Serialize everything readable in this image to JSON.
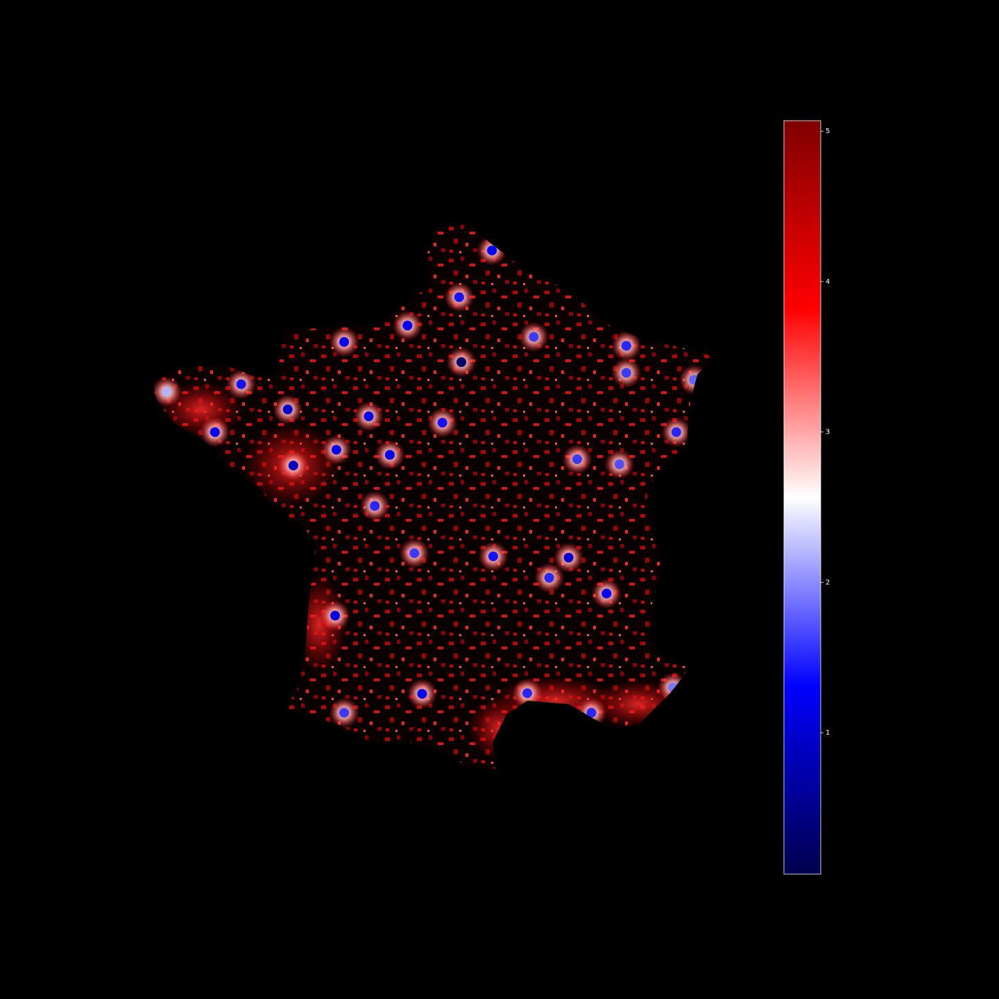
{
  "map": {
    "colormap": "seismic",
    "points": [
      {
        "lon": 2.35,
        "lat": 48.86,
        "value": 0.3
      },
      {
        "lon": 3.06,
        "lat": 50.63,
        "value": 1.3
      },
      {
        "lon": 4.84,
        "lat": 45.76,
        "value": 1.0
      },
      {
        "lon": 5.37,
        "lat": 43.3,
        "value": 1.5
      },
      {
        "lon": 1.44,
        "lat": 43.6,
        "value": 1.2
      },
      {
        "lon": -0.58,
        "lat": 44.84,
        "value": 1.1
      },
      {
        "lon": -1.55,
        "lat": 47.22,
        "value": 0.9
      },
      {
        "lon": -1.68,
        "lat": 48.11,
        "value": 1.0
      },
      {
        "lon": -4.49,
        "lat": 48.39,
        "value": 2.2
      },
      {
        "lon": 7.75,
        "lat": 48.58,
        "value": 1.8
      },
      {
        "lon": 7.26,
        "lat": 43.7,
        "value": 1.9
      },
      {
        "lon": 3.88,
        "lat": 43.61,
        "value": 1.5
      },
      {
        "lon": 5.72,
        "lat": 45.19,
        "value": 1.3
      },
      {
        "lon": 3.09,
        "lat": 45.78,
        "value": 1.4
      },
      {
        "lon": 1.26,
        "lat": 45.83,
        "value": 1.6
      },
      {
        "lon": 0.34,
        "lat": 46.58,
        "value": 1.5
      },
      {
        "lon": 0.69,
        "lat": 47.39,
        "value": 1.2
      },
      {
        "lon": -0.55,
        "lat": 47.47,
        "value": 1.3
      },
      {
        "lon": 0.2,
        "lat": 48.0,
        "value": 1.3
      },
      {
        "lon": 1.91,
        "lat": 47.9,
        "value": 1.4
      },
      {
        "lon": -0.37,
        "lat": 49.18,
        "value": 1.2
      },
      {
        "lon": 1.1,
        "lat": 49.44,
        "value": 1.3
      },
      {
        "lon": 2.3,
        "lat": 49.89,
        "value": 1.4
      },
      {
        "lon": 4.03,
        "lat": 49.26,
        "value": 1.6
      },
      {
        "lon": 6.18,
        "lat": 49.12,
        "value": 1.5
      },
      {
        "lon": 6.18,
        "lat": 48.69,
        "value": 1.6
      },
      {
        "lon": 5.04,
        "lat": 47.32,
        "value": 1.6
      },
      {
        "lon": 6.02,
        "lat": 47.24,
        "value": 1.7
      },
      {
        "lon": 7.34,
        "lat": 47.75,
        "value": 1.5
      },
      {
        "lon": 4.39,
        "lat": 45.44,
        "value": 1.5
      },
      {
        "lon": -0.37,
        "lat": 43.3,
        "value": 1.6
      },
      {
        "lon": -3.37,
        "lat": 47.75,
        "value": 1.3
      },
      {
        "lon": -2.76,
        "lat": 48.51,
        "value": 1.4
      }
    ]
  },
  "colorbar": {
    "clim": [
      0.06,
      5.07
    ],
    "ticks": [
      1,
      2,
      3,
      4,
      5
    ]
  }
}
